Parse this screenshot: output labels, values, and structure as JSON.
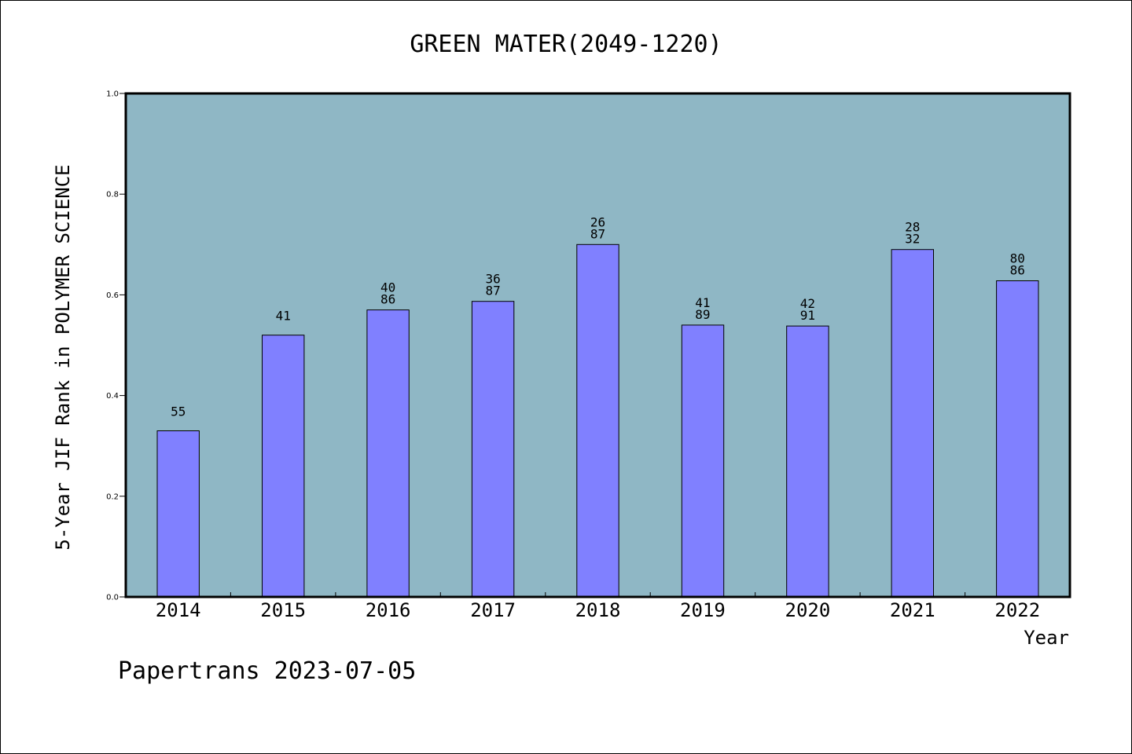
{
  "chart_data": {
    "type": "bar",
    "title": "GREEN MATER(2049-1220)",
    "xlabel": "Year",
    "ylabel": "5-Year JIF Rank in POLYMER SCIENCE",
    "ylim": [
      0.0,
      1.0
    ],
    "yticks": [
      "0.0",
      "0.2",
      "0.4",
      "0.6",
      "0.8",
      "1.0"
    ],
    "categories": [
      "2014",
      "2015",
      "2016",
      "2017",
      "2018",
      "2019",
      "2020",
      "2021",
      "2022"
    ],
    "values": [
      0.33,
      0.52,
      0.57,
      0.587,
      0.7,
      0.54,
      0.538,
      0.69,
      0.628
    ],
    "data_labels": [
      [
        "55"
      ],
      [
        "41"
      ],
      [
        "40",
        "86"
      ],
      [
        "36",
        "87"
      ],
      [
        "26",
        "87"
      ],
      [
        "41",
        "89"
      ],
      [
        "42",
        "91"
      ],
      [
        "28",
        "32"
      ],
      [
        "80",
        "86"
      ]
    ],
    "colors": {
      "plot_background": "#8fb7c5",
      "bar_fill": "#8080ff",
      "bar_stroke": "#000000"
    },
    "grid": false,
    "legend": "none"
  },
  "footer": {
    "text": "Papertrans 2023-07-05"
  }
}
